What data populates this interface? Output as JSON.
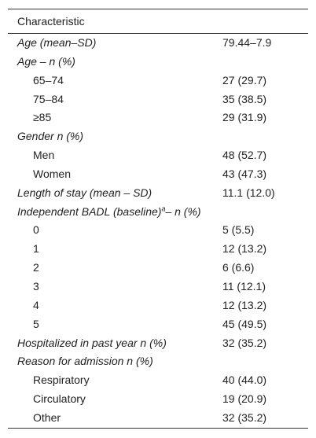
{
  "table": {
    "header": "Characteristic",
    "rows": [
      [
        "Age (mean–SD)",
        "79.44–7.9"
      ],
      [
        "Age – n (%)"
      ],
      [
        "65–74",
        "27 (29.7)"
      ],
      [
        "75–84",
        "35 (38.5)"
      ],
      [
        "≥85",
        "29 (31.9)"
      ],
      [
        "Gender n (%)"
      ],
      [
        "Men",
        "48 (52.7)"
      ],
      [
        "Women",
        "43 (47.3)"
      ],
      [
        "Length of stay (mean – SD)",
        "11.1 (12.0)"
      ],
      [
        [
          "Independent BADL (baseline)",
          "a",
          "– n (%)"
        ]
      ],
      [
        "0",
        "5 (5.5)"
      ],
      [
        "1",
        "12 (13.2)"
      ],
      [
        "2",
        "6 (6.6)"
      ],
      [
        "3",
        "11 (12.1)"
      ],
      [
        "4",
        "12 (13.2)"
      ],
      [
        "5",
        "45 (49.5)"
      ],
      [
        "Hospitalized in past year n (%)",
        "32 (35.2)"
      ],
      [
        "Reason for admission n (%)"
      ],
      [
        "Respiratory",
        "40 (44.0)"
      ],
      [
        "Circulatory",
        "19 (20.9)"
      ],
      [
        "Other",
        "32 (35.2)"
      ]
    ]
  }
}
